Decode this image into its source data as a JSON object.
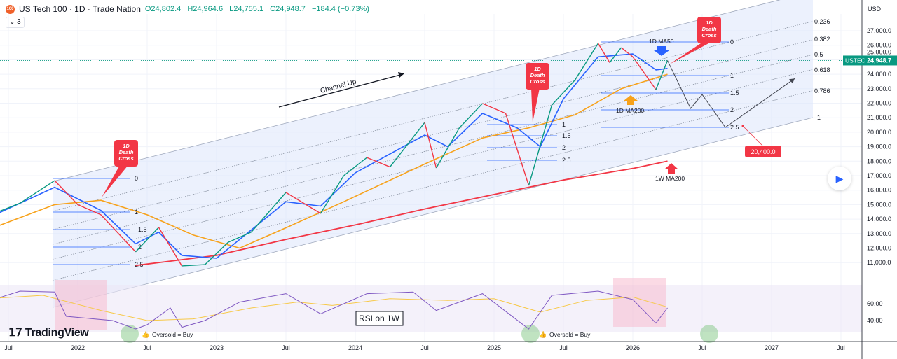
{
  "header": {
    "symbol_title": "US Tech 100 · 1D · Trade Nation",
    "open": "O24,802.4",
    "high": "H24,964.6",
    "low": "L24,755.1",
    "close": "C24,948.7",
    "change": "−184.4 (−0.73%)",
    "indicator_count": "⌄ 3",
    "logo_text": "100"
  },
  "brand": "TradingView",
  "colors": {
    "up": "#089981",
    "down": "#f23645",
    "ma50": "#2962ff",
    "ma200": "#f7a21b",
    "w_ma200": "#f23645",
    "channel": "#dce6fb",
    "rsi": "#7e57c2"
  },
  "chart_data": {
    "type": "line",
    "currency": "USD",
    "y_scale": "linear",
    "ylim": [
      10500,
      27700
    ],
    "y_ticks": [
      "27,000.0",
      "26,000.0",
      "25,000.0",
      "24,000.0",
      "23,000.0",
      "22,000.0",
      "21,000.0",
      "20,000.0",
      "19,000.0",
      "18,000.0",
      "17,000.0",
      "16,000.0",
      "15,000.0",
      "14,000.0",
      "13,000.0",
      "12,000.0",
      "11,000.0"
    ],
    "y_tick_values": [
      27000,
      26000,
      25000,
      24000,
      23000,
      22000,
      21000,
      20000,
      19000,
      18000,
      17000,
      16000,
      15000,
      14000,
      13000,
      12000,
      11000
    ],
    "x_ticks": [
      "Jul",
      "2022",
      "Jul",
      "2023",
      "Jul",
      "2024",
      "Jul",
      "2025",
      "Jul",
      "2026",
      "Jul",
      "2027",
      "Jul"
    ],
    "x_tick_dates": [
      "2021-07",
      "2022-01",
      "2022-07",
      "2023-01",
      "2023-07",
      "2024-01",
      "2024-07",
      "2025-01",
      "2025-07",
      "2026-01",
      "2026-07",
      "2027-01",
      "2027-07"
    ],
    "last_price": {
      "label": "USTEC",
      "value": "24,948.7",
      "v": 24948.7
    },
    "price": [
      [
        "2021-05",
        14150
      ],
      [
        "2021-08",
        15100
      ],
      [
        "2021-11",
        16660
      ],
      [
        "2022-01",
        15000
      ],
      [
        "2022-03",
        14300
      ],
      [
        "2022-06",
        11740
      ],
      [
        "2022-08",
        13430
      ],
      [
        "2022-10",
        10770
      ],
      [
        "2022-12",
        10860
      ],
      [
        "2023-02",
        12400
      ],
      [
        "2023-04",
        13100
      ],
      [
        "2023-07",
        15840
      ],
      [
        "2023-10",
        14390
      ],
      [
        "2023-12",
        17000
      ],
      [
        "2024-02",
        18250
      ],
      [
        "2024-04",
        17600
      ],
      [
        "2024-07",
        20670
      ],
      [
        "2024-08",
        17530
      ],
      [
        "2024-10",
        20300
      ],
      [
        "2024-12",
        21980
      ],
      [
        "2025-02",
        21300
      ],
      [
        "2025-04",
        16320
      ],
      [
        "2025-06",
        21880
      ],
      [
        "2025-08",
        23600
      ],
      [
        "2025-10",
        26130
      ],
      [
        "2025-11",
        24800
      ],
      [
        "2025-12",
        25840
      ],
      [
        "2026-01",
        25200
      ],
      [
        "2026-03",
        22940
      ],
      [
        "2026-04",
        24948.7
      ]
    ],
    "ma50_1d": [
      [
        "2021-05",
        14000
      ],
      [
        "2021-11",
        16200
      ],
      [
        "2022-03",
        14600
      ],
      [
        "2022-06",
        12300
      ],
      [
        "2022-08",
        13100
      ],
      [
        "2022-10",
        11500
      ],
      [
        "2023-01",
        11300
      ],
      [
        "2023-07",
        15200
      ],
      [
        "2023-10",
        14900
      ],
      [
        "2024-01",
        17200
      ],
      [
        "2024-07",
        19800
      ],
      [
        "2024-09",
        19000
      ],
      [
        "2024-12",
        21300
      ],
      [
        "2025-03",
        20300
      ],
      [
        "2025-05",
        19000
      ],
      [
        "2025-07",
        22300
      ],
      [
        "2025-10",
        25200
      ],
      [
        "2026-01",
        25400
      ],
      [
        "2026-03",
        24300
      ],
      [
        "2026-04",
        24400
      ]
    ],
    "ma200_1d": [
      [
        "2021-05",
        13200
      ],
      [
        "2021-11",
        15000
      ],
      [
        "2022-03",
        15300
      ],
      [
        "2022-07",
        14300
      ],
      [
        "2022-11",
        12900
      ],
      [
        "2023-03",
        12000
      ],
      [
        "2023-07",
        13400
      ],
      [
        "2023-12",
        15200
      ],
      [
        "2024-07",
        17800
      ],
      [
        "2024-12",
        19600
      ],
      [
        "2025-04",
        20300
      ],
      [
        "2025-08",
        21200
      ],
      [
        "2025-12",
        23000
      ],
      [
        "2026-04",
        24000
      ]
    ],
    "ma200_1w": [
      [
        "2022-06",
        10800
      ],
      [
        "2023-01",
        11500
      ],
      [
        "2023-07",
        12600
      ],
      [
        "2024-01",
        13600
      ],
      [
        "2024-07",
        14700
      ],
      [
        "2025-01",
        15700
      ],
      [
        "2025-07",
        16700
      ],
      [
        "2026-01",
        17500
      ],
      [
        "2026-04",
        18000
      ]
    ],
    "projection": [
      [
        "2026-04",
        24948.7
      ],
      [
        "2026-06",
        21640
      ],
      [
        "2026-07",
        22600
      ],
      [
        "2026-09",
        20330
      ],
      [
        "2027-03",
        23700
      ]
    ],
    "fib_channel": {
      "levels": [
        "0.236",
        "0.382",
        "0.5",
        "0.618",
        "0.786",
        "1"
      ],
      "level_values": [
        0.236,
        0.382,
        0.5,
        0.618,
        0.786,
        1
      ]
    },
    "fib_extensions": [
      {
        "start": "2021-11",
        "end": "2022-09",
        "top": 16660,
        "labels": [
          "0",
          "1",
          "1.5",
          "2",
          "2.5"
        ]
      },
      {
        "start": "2024-12",
        "end": "2025-07",
        "top": 21980,
        "labels": [
          "1",
          "1.5",
          "2",
          "2.5"
        ]
      },
      {
        "start": "2025-10",
        "end": "2026-09",
        "top": 26130,
        "labels": [
          "0",
          "1",
          "1.5",
          "2",
          "2.5"
        ]
      }
    ],
    "annotations": {
      "death_cross": [
        "1D Death Cross",
        "1D Death Cross",
        "1D Death Cross"
      ],
      "channel_up": "Channel Up",
      "ma50_label": "1D MA50",
      "ma200_label": "1D MA200",
      "w_ma200_label": "1W MA200",
      "target": "20,400.0",
      "rsi_label": "RSI on 1W",
      "oversold": [
        "Oversold = Buy",
        "Oversold = Buy"
      ]
    },
    "rsi": {
      "ticks": [
        "60.00",
        "40.00"
      ],
      "tick_values": [
        60,
        40
      ],
      "values": [
        [
          "2021-05",
          62
        ],
        [
          "2021-08",
          75
        ],
        [
          "2021-11",
          74
        ],
        [
          "2021-12",
          45
        ],
        [
          "2022-04",
          40
        ],
        [
          "2022-06",
          30
        ],
        [
          "2022-07",
          35
        ],
        [
          "2022-09",
          55
        ],
        [
          "2022-10",
          32
        ],
        [
          "2022-12",
          40
        ],
        [
          "2023-03",
          62
        ],
        [
          "2023-07",
          72
        ],
        [
          "2023-10",
          48
        ],
        [
          "2024-02",
          72
        ],
        [
          "2024-06",
          74
        ],
        [
          "2024-08",
          52
        ],
        [
          "2024-12",
          72
        ],
        [
          "2025-04",
          30
        ],
        [
          "2025-06",
          70
        ],
        [
          "2025-10",
          75
        ],
        [
          "2026-01",
          65
        ],
        [
          "2026-03",
          37
        ],
        [
          "2026-04",
          55
        ]
      ],
      "signal": [
        [
          "2021-05",
          66
        ],
        [
          "2021-10",
          70
        ],
        [
          "2022-03",
          52
        ],
        [
          "2022-07",
          40
        ],
        [
          "2022-11",
          42
        ],
        [
          "2023-04",
          55
        ],
        [
          "2023-08",
          62
        ],
        [
          "2023-11",
          58
        ],
        [
          "2024-04",
          66
        ],
        [
          "2024-09",
          64
        ],
        [
          "2025-01",
          66
        ],
        [
          "2025-05",
          50
        ],
        [
          "2025-09",
          64
        ],
        [
          "2026-01",
          68
        ],
        [
          "2026-04",
          56
        ]
      ]
    }
  }
}
